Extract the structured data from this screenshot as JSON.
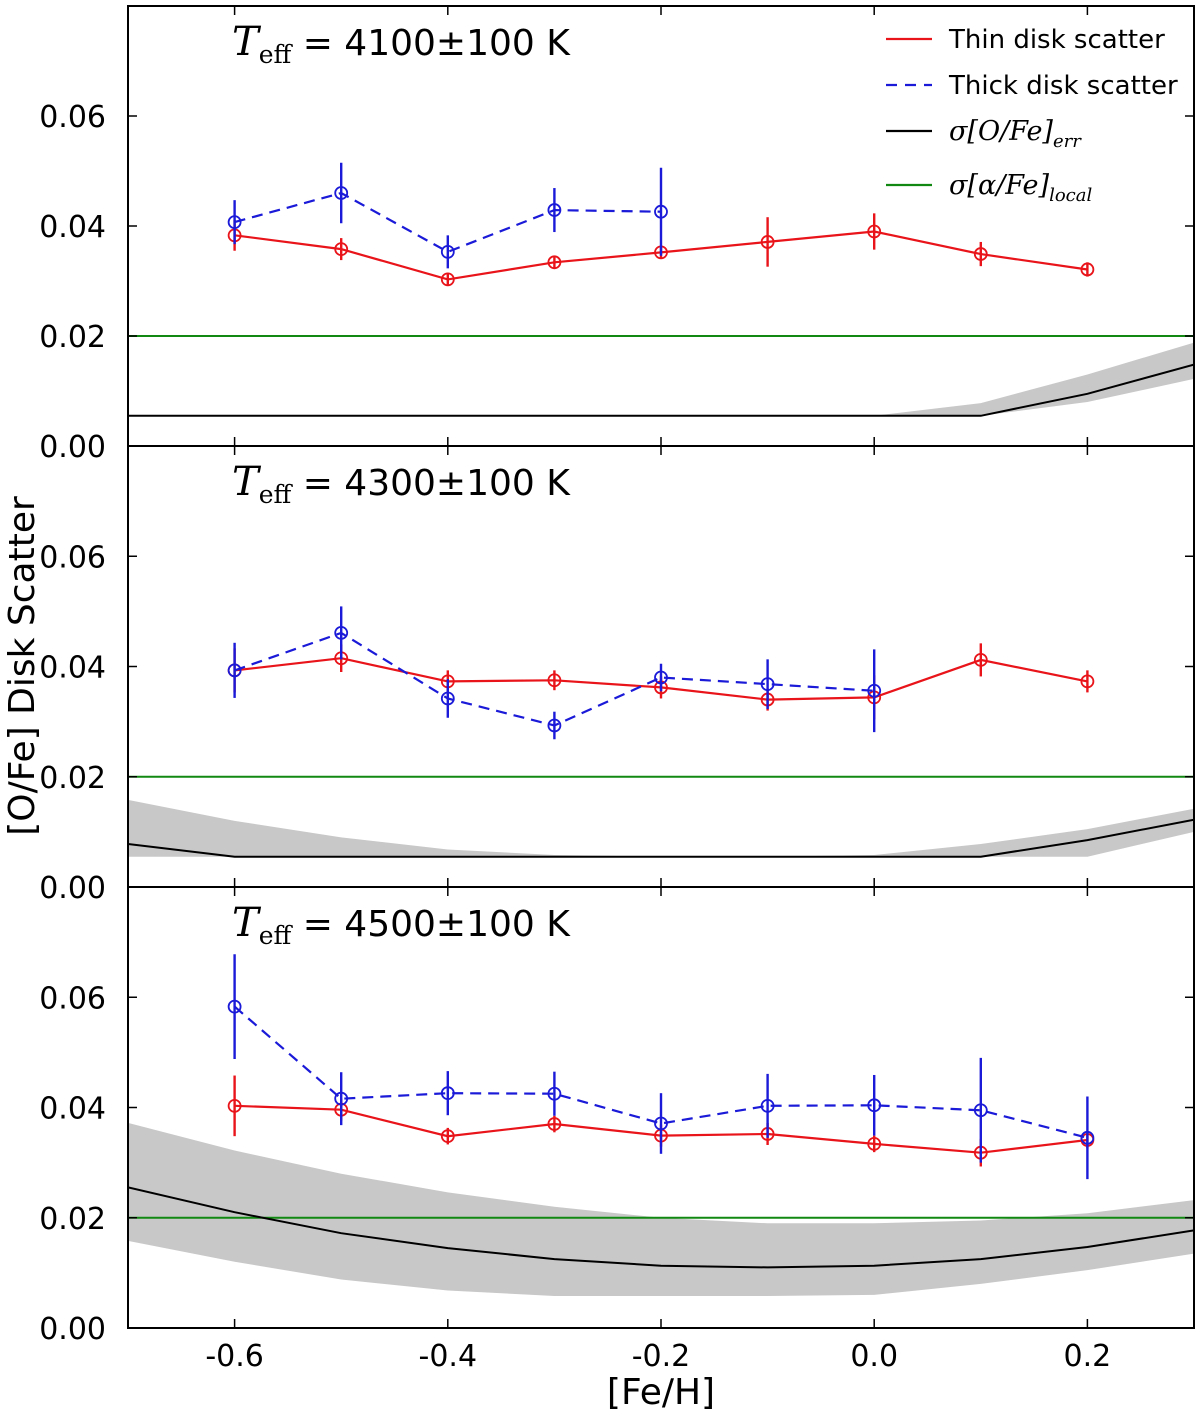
{
  "chart_data": {
    "type": "line",
    "figure": {
      "ylabel": "[O/Fe] Disk Scatter",
      "xlabel": "[Fe/H]",
      "xlim": [
        -0.7,
        0.3
      ],
      "ylim": [
        0.0,
        0.08
      ],
      "xticks": [
        -0.6,
        -0.4,
        -0.2,
        0.0,
        0.2
      ],
      "xtick_labels": [
        "-0.6",
        "-0.4",
        "-0.2",
        "0.0",
        "0.2"
      ],
      "yticks": [
        0.0,
        0.02,
        0.04,
        0.06
      ],
      "ytick_labels": [
        "0.00",
        "0.02",
        "0.04",
        "0.06"
      ],
      "legend": {
        "location": "top-right of top panel",
        "entries": [
          {
            "label": "Thin disk scatter",
            "color": "#e8141a",
            "style": "solid"
          },
          {
            "label": "Thick disk scatter",
            "color": "#1a1ad8",
            "style": "dashed"
          },
          {
            "label": "σ[O/Fe]err",
            "base": "σ[O/Fe]",
            "sub": "err",
            "color": "#000000",
            "style": "solid"
          },
          {
            "label": "σ[α/Fe]local",
            "base": "σ[α/Fe]",
            "sub": "local",
            "color": "#118811",
            "style": "solid"
          }
        ]
      }
    },
    "panels": [
      {
        "title": "Teff = 4100±100 K",
        "title_var": "T",
        "title_sub": "eff",
        "title_rest": " = 4100±100 K",
        "local_level": 0.02,
        "thin": {
          "x": [
            -0.6,
            -0.5,
            -0.4,
            -0.3,
            -0.2,
            -0.1,
            0.0,
            0.1,
            0.2
          ],
          "y": [
            0.0383,
            0.0358,
            0.0303,
            0.0334,
            0.0352,
            0.0371,
            0.039,
            0.0349,
            0.0321
          ],
          "err": [
            0.0028,
            0.002,
            0.001,
            0.0012,
            0.0012,
            0.0045,
            0.0033,
            0.0022,
            0.0013
          ]
        },
        "thick": {
          "x": [
            -0.6,
            -0.5,
            -0.4,
            -0.3,
            -0.2
          ],
          "y": [
            0.0407,
            0.046,
            0.0353,
            0.0429,
            0.0426
          ],
          "err": [
            0.004,
            0.0055,
            0.003,
            0.004,
            0.008
          ]
        },
        "error_model": {
          "x": [
            -0.7,
            -0.6,
            -0.5,
            -0.4,
            -0.3,
            -0.2,
            -0.1,
            0.0,
            0.1,
            0.2,
            0.3
          ],
          "y": [
            0.0055,
            0.0055,
            0.0055,
            0.0055,
            0.0055,
            0.0055,
            0.0055,
            0.0055,
            0.0055,
            0.0095,
            0.0148
          ],
          "lower": [
            0.0055,
            0.0055,
            0.0055,
            0.0055,
            0.0055,
            0.0055,
            0.0055,
            0.0055,
            0.0055,
            0.008,
            0.0122
          ],
          "upper": [
            0.0055,
            0.0055,
            0.0055,
            0.0055,
            0.0055,
            0.0055,
            0.0055,
            0.0055,
            0.0078,
            0.013,
            0.0188
          ]
        }
      },
      {
        "title": "Teff = 4300±100 K",
        "title_var": "T",
        "title_sub": "eff",
        "title_rest": " = 4300±100 K",
        "local_level": 0.02,
        "thin": {
          "x": [
            -0.6,
            -0.5,
            -0.4,
            -0.3,
            -0.2,
            -0.1,
            0.0,
            0.1,
            0.2
          ],
          "y": [
            0.0393,
            0.0415,
            0.0373,
            0.0375,
            0.0362,
            0.034,
            0.0344,
            0.0412,
            0.0373
          ],
          "err": [
            0.004,
            0.0025,
            0.002,
            0.0018,
            0.002,
            0.002,
            0.004,
            0.003,
            0.002
          ]
        },
        "thick": {
          "x": [
            -0.6,
            -0.5,
            -0.4,
            -0.3,
            -0.2,
            -0.1,
            0.0
          ],
          "y": [
            0.0393,
            0.0461,
            0.0342,
            0.0293,
            0.038,
            0.0368,
            0.0356
          ],
          "err": [
            0.005,
            0.0048,
            0.0035,
            0.0025,
            0.0025,
            0.0045,
            0.0075
          ]
        },
        "error_model": {
          "x": [
            -0.7,
            -0.6,
            -0.5,
            -0.4,
            -0.3,
            -0.2,
            -0.1,
            0.0,
            0.1,
            0.2,
            0.3
          ],
          "y": [
            0.0078,
            0.0055,
            0.0055,
            0.0055,
            0.0055,
            0.0055,
            0.0055,
            0.0055,
            0.0055,
            0.0085,
            0.0122
          ],
          "lower": [
            0.0055,
            0.0055,
            0.0055,
            0.0055,
            0.0055,
            0.0055,
            0.0055,
            0.0055,
            0.0055,
            0.0055,
            0.01
          ],
          "upper": [
            0.0158,
            0.012,
            0.009,
            0.0068,
            0.0058,
            0.0055,
            0.0055,
            0.0058,
            0.0078,
            0.0105,
            0.0142
          ]
        }
      },
      {
        "title": "Teff = 4500±100 K",
        "title_var": "T",
        "title_sub": "eff",
        "title_rest": " = 4500±100 K",
        "local_level": 0.02,
        "thin": {
          "x": [
            -0.6,
            -0.5,
            -0.4,
            -0.3,
            -0.2,
            -0.1,
            0.0,
            0.1,
            0.2
          ],
          "y": [
            0.0403,
            0.0396,
            0.0348,
            0.037,
            0.0349,
            0.0352,
            0.0334,
            0.0318,
            0.0341
          ],
          "err": [
            0.0055,
            0.002,
            0.0015,
            0.0015,
            0.002,
            0.002,
            0.0015,
            0.0025,
            0.0015
          ]
        },
        "thick": {
          "x": [
            -0.6,
            -0.5,
            -0.4,
            -0.3,
            -0.2,
            -0.1,
            0.0,
            0.1,
            0.2
          ],
          "y": [
            0.0583,
            0.0416,
            0.0426,
            0.0425,
            0.0371,
            0.0403,
            0.0404,
            0.0395,
            0.0345
          ],
          "err": [
            0.0095,
            0.0048,
            0.004,
            0.004,
            0.0055,
            0.0058,
            0.0055,
            0.0095,
            0.0075
          ]
        },
        "error_model": {
          "x": [
            -0.7,
            -0.6,
            -0.5,
            -0.4,
            -0.3,
            -0.2,
            -0.1,
            0.0,
            0.1,
            0.2,
            0.3
          ],
          "y": [
            0.0255,
            0.021,
            0.0172,
            0.0145,
            0.0125,
            0.0113,
            0.011,
            0.0113,
            0.0125,
            0.0147,
            0.0177
          ],
          "lower": [
            0.0158,
            0.012,
            0.0088,
            0.0068,
            0.0058,
            0.0058,
            0.0058,
            0.006,
            0.008,
            0.0105,
            0.0135
          ],
          "upper": [
            0.0372,
            0.0322,
            0.028,
            0.0246,
            0.022,
            0.02,
            0.019,
            0.019,
            0.0195,
            0.0208,
            0.0232
          ]
        }
      }
    ]
  }
}
